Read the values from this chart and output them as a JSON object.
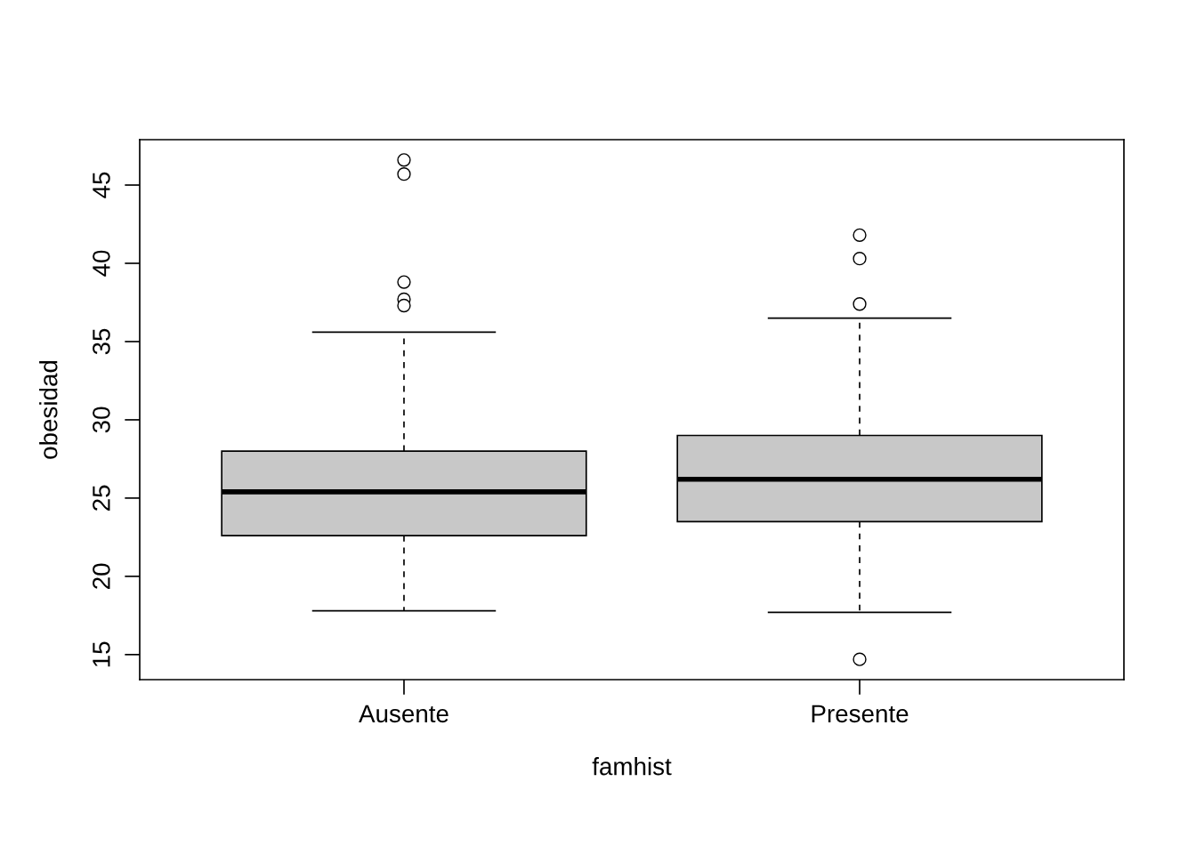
{
  "chart_data": {
    "type": "box",
    "xlabel": "famhist",
    "ylabel": "obesidad",
    "categories": [
      "Ausente",
      "Presente"
    ],
    "boxes": [
      {
        "low": 17.8,
        "q1": 22.6,
        "median": 25.4,
        "q3": 28.0,
        "high": 35.6,
        "outliers": [
          46.6,
          45.7,
          38.8,
          37.7,
          37.3
        ]
      },
      {
        "low": 17.7,
        "q1": 23.5,
        "median": 26.2,
        "q3": 29.0,
        "high": 36.5,
        "outliers": [
          41.8,
          40.3,
          37.4,
          14.7
        ]
      }
    ],
    "color": "#c8c8c8",
    "ylim": [
      13.4,
      47.9
    ],
    "yticks": [
      15,
      20,
      25,
      30,
      35,
      40,
      45
    ],
    "grid": false
  }
}
